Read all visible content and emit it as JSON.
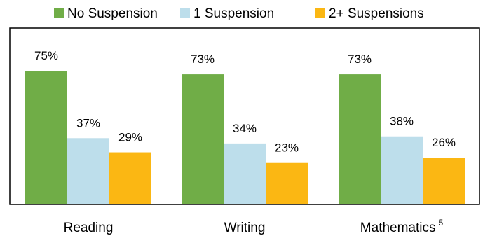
{
  "chart_data": {
    "type": "bar",
    "categories": [
      "Reading",
      "Writing",
      "Mathematics"
    ],
    "category_superscripts": [
      "",
      "",
      "5"
    ],
    "series": [
      {
        "name": "No Suspension",
        "color": "#70ad47",
        "values": [
          75,
          73,
          73
        ],
        "labels": [
          "75%",
          "73%",
          "73%"
        ]
      },
      {
        "name": "1 Suspension",
        "color": "#bddeeb",
        "values": [
          37,
          34,
          38
        ],
        "labels": [
          "37%",
          "34%",
          "38%"
        ]
      },
      {
        "name": "2+ Suspensions",
        "color": "#fbb713",
        "values": [
          29,
          23,
          26
        ],
        "labels": [
          "29%",
          "23%",
          "26%"
        ]
      }
    ],
    "ylim": [
      0,
      100
    ],
    "grid": false,
    "legend_position": "top-center"
  }
}
